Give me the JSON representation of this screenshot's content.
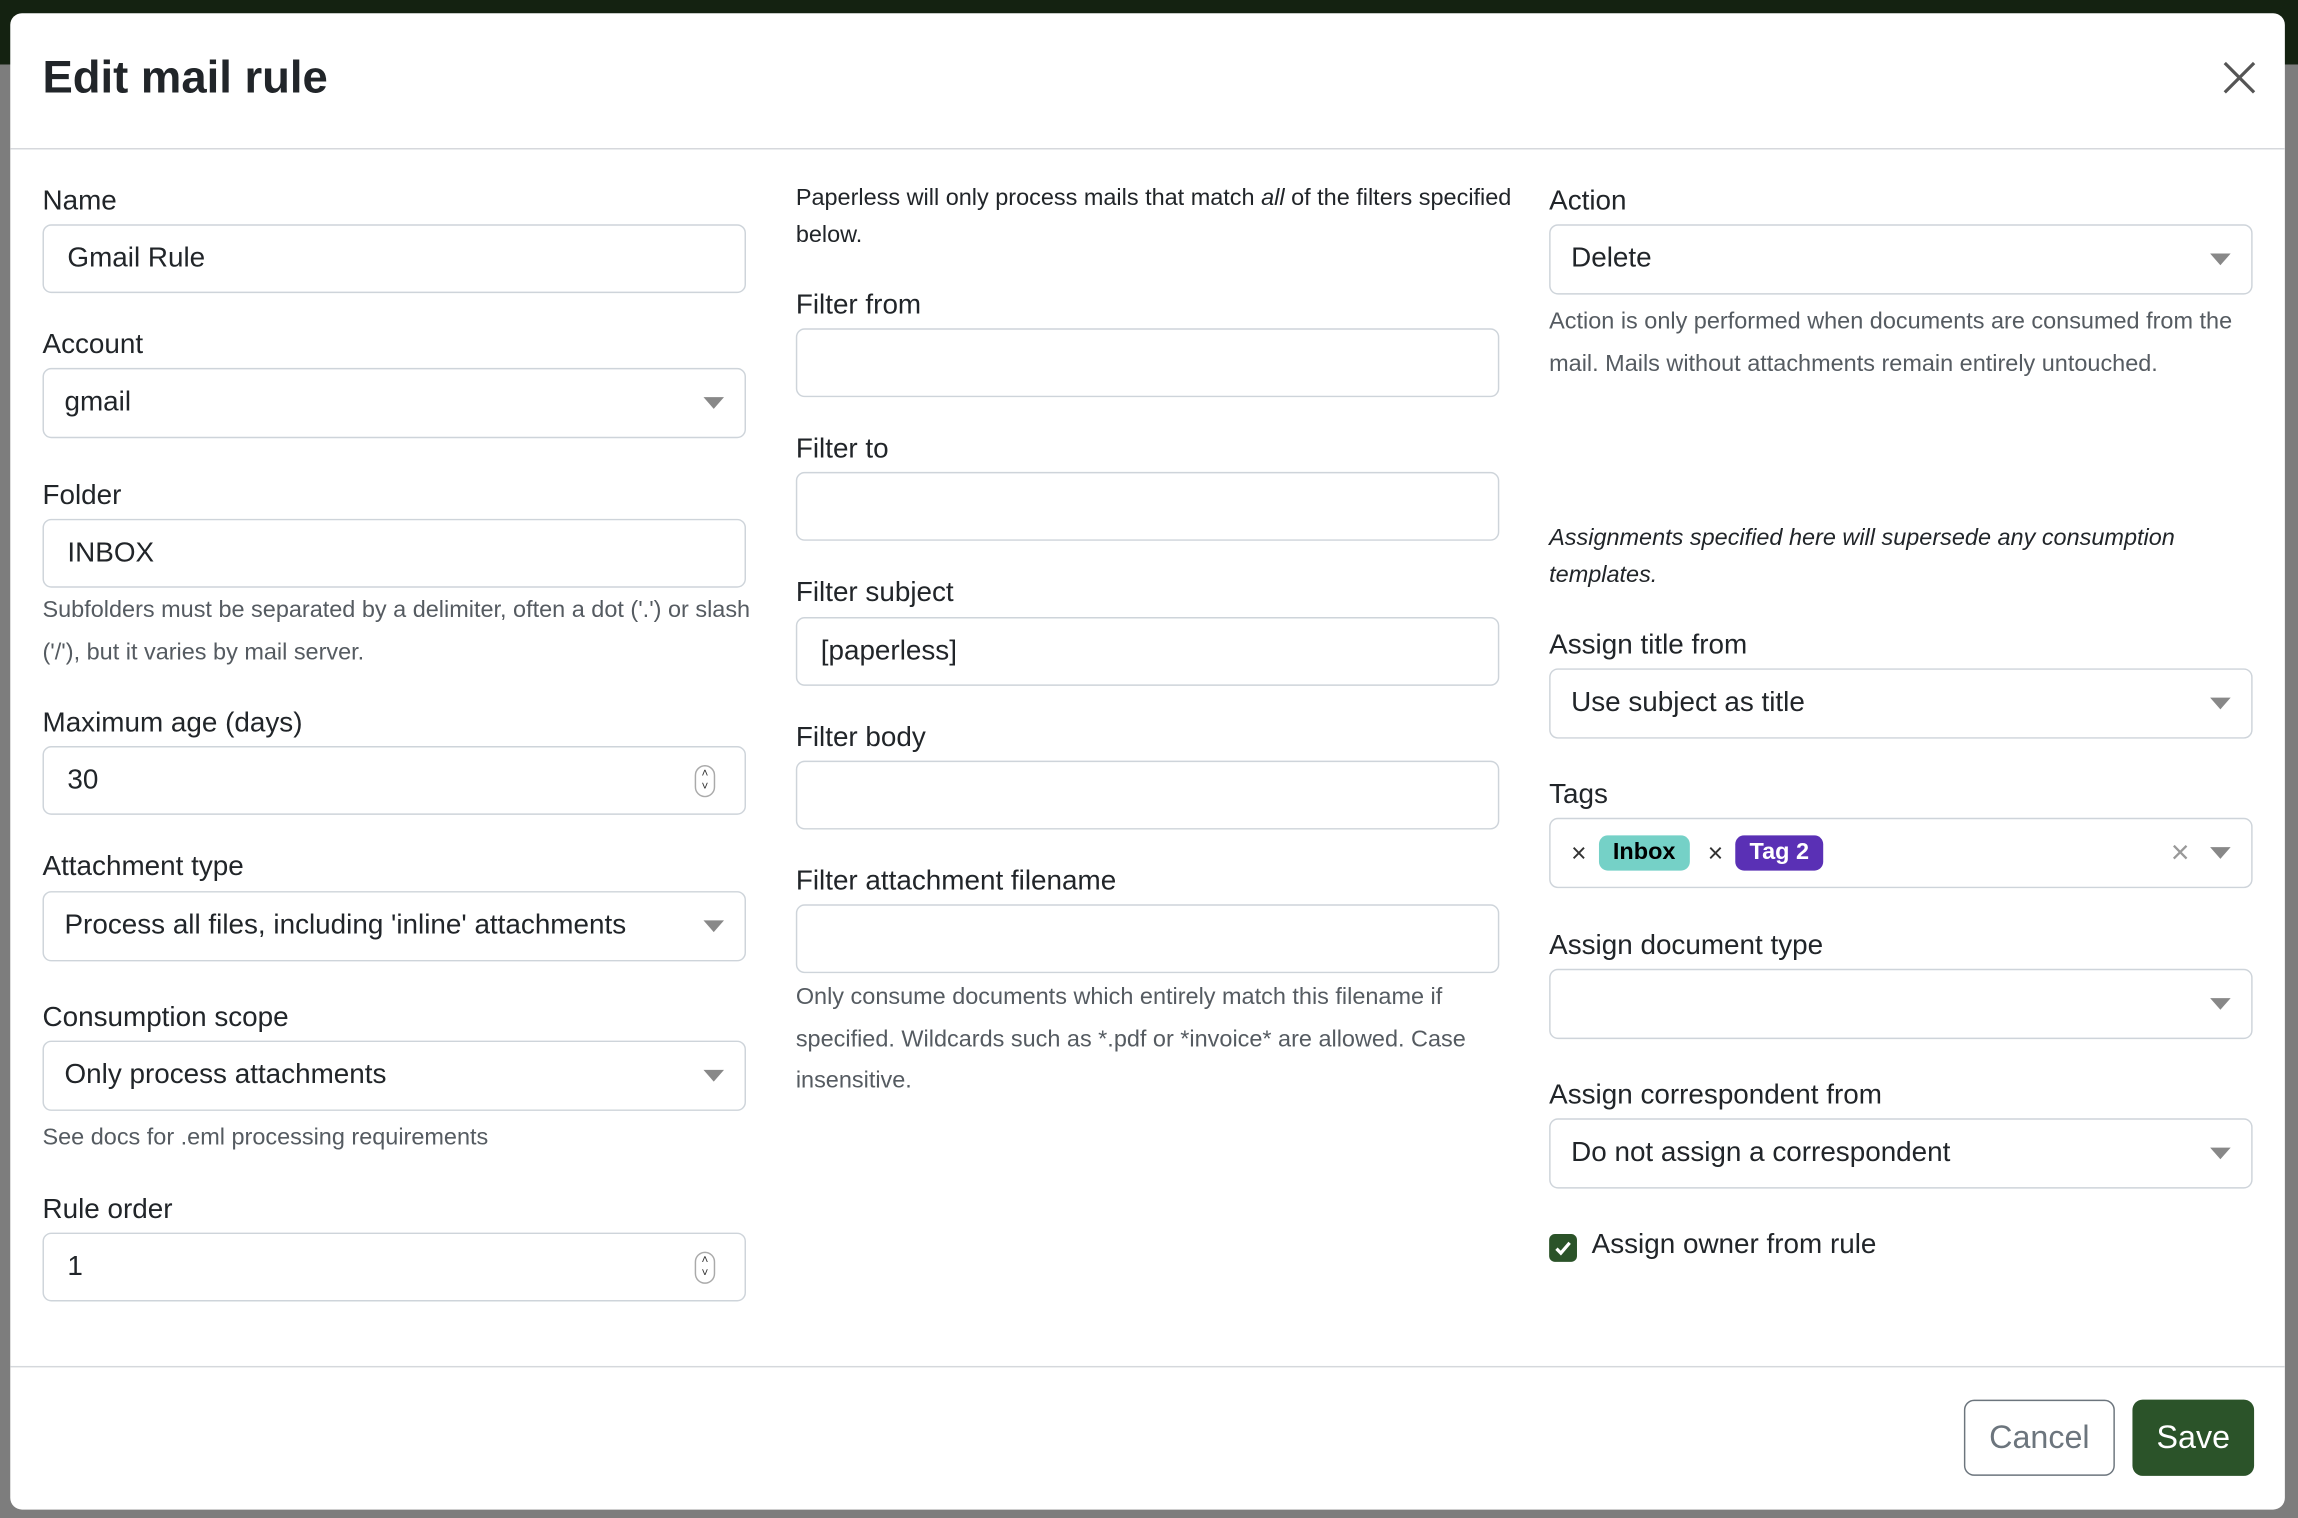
{
  "dialog": {
    "title": "Edit mail rule",
    "cancel": "Cancel",
    "save": "Save"
  },
  "col1": {
    "name": {
      "label": "Name",
      "value": "Gmail Rule"
    },
    "account": {
      "label": "Account",
      "value": "gmail"
    },
    "folder": {
      "label": "Folder",
      "value": "INBOX",
      "help": "Subfolders must be separated by a delimiter, often a dot ('.') or slash ('/'), but it varies by mail server."
    },
    "max_age": {
      "label": "Maximum age (days)",
      "value": "30"
    },
    "attachment_type": {
      "label": "Attachment type",
      "value": "Process all files, including 'inline' attachments"
    },
    "consumption_scope": {
      "label": "Consumption scope",
      "value": "Only process attachments",
      "help": "See docs for .eml processing requirements"
    },
    "rule_order": {
      "label": "Rule order",
      "value": "1"
    }
  },
  "col2": {
    "intro_pre": "Paperless will only process mails that match ",
    "intro_em": "all",
    "intro_post": " of the filters specified below.",
    "filter_from": {
      "label": "Filter from",
      "value": ""
    },
    "filter_to": {
      "label": "Filter to",
      "value": ""
    },
    "filter_subject": {
      "label": "Filter subject",
      "value": "[paperless]"
    },
    "filter_body": {
      "label": "Filter body",
      "value": ""
    },
    "filter_attachment": {
      "label": "Filter attachment filename",
      "value": "",
      "help": "Only consume documents which entirely match this filename if specified. Wildcards such as *.pdf or *invoice* are allowed. Case insensitive."
    }
  },
  "col3": {
    "action": {
      "label": "Action",
      "value": "Delete",
      "help": "Action is only performed when documents are consumed from the mail. Mails without attachments remain entirely untouched."
    },
    "assign_note": "Assignments specified here will supersede any consumption templates.",
    "assign_title": {
      "label": "Assign title from",
      "value": "Use subject as title"
    },
    "tags": {
      "label": "Tags",
      "items": [
        {
          "label": "Inbox",
          "color": "#75d1c7",
          "text_color": "#000000"
        },
        {
          "label": "Tag 2",
          "color": "#5a30b5",
          "text_color": "#ffffff"
        }
      ]
    },
    "doc_type": {
      "label": "Assign document type",
      "value": ""
    },
    "correspondent": {
      "label": "Assign correspondent from",
      "value": "Do not assign a correspondent"
    },
    "owner": {
      "label": "Assign owner from rule",
      "checked": true
    }
  },
  "colors": {
    "primary": "#2b5329",
    "topbar": "#142211"
  }
}
